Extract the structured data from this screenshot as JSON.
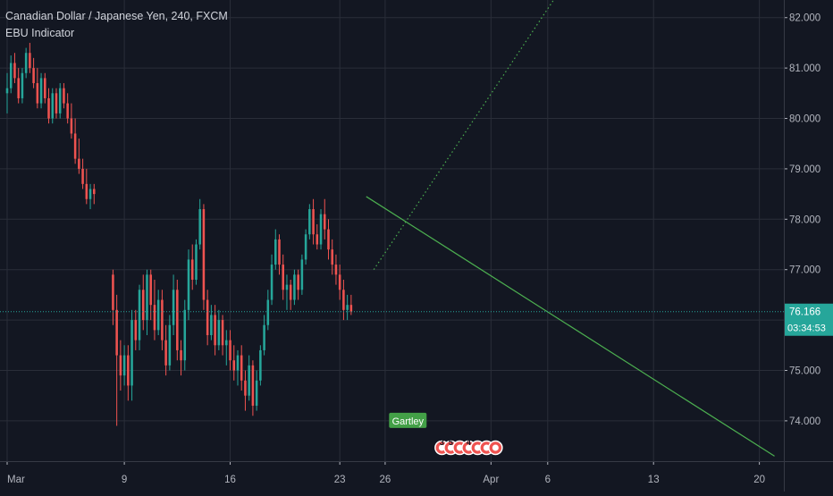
{
  "header": {
    "symbol_line": "Canadian Dollar / Japanese Yen, 240, FXCM",
    "indicator": "EBU Indicator"
  },
  "colors": {
    "background": "#131722",
    "grid": "#2a2e39",
    "up": "#26a69a",
    "down": "#ef5350",
    "price_line": "#26a69a",
    "trendline": "#4caf50",
    "axis_text": "#b2b5be",
    "label_badge": "#43a047"
  },
  "chart_data": {
    "type": "candlestick",
    "y_axis": {
      "ticks": [
        "82.000",
        "81.000",
        "80.000",
        "79.000",
        "78.000",
        "77.000",
        "76.000",
        "75.000",
        "74.000"
      ],
      "tick_values": [
        82,
        81,
        80,
        79,
        78,
        77,
        76,
        75,
        74
      ],
      "range": [
        73.2,
        82.35
      ]
    },
    "x_axis": {
      "ticks": [
        "Mar",
        "9",
        "16",
        "23",
        "26",
        "Apr",
        "6",
        "13",
        "20"
      ],
      "tick_positions": [
        0,
        31,
        59,
        88,
        100,
        128,
        143,
        171,
        199
      ],
      "range": [
        0,
        205
      ]
    },
    "current_price": {
      "value": 76.166,
      "label": "76.166",
      "countdown": "03:34:53"
    },
    "candles": [
      [
        0,
        80.5,
        80.9,
        80.1,
        80.6
      ],
      [
        1,
        80.6,
        81.25,
        80.5,
        81.1
      ],
      [
        2,
        81.1,
        81.3,
        80.7,
        80.8
      ],
      [
        3,
        80.8,
        81.0,
        80.3,
        80.4
      ],
      [
        4,
        80.4,
        81.0,
        80.3,
        80.9
      ],
      [
        5,
        80.9,
        81.4,
        80.8,
        81.3
      ],
      [
        6,
        81.3,
        81.5,
        80.9,
        81.0
      ],
      [
        7,
        81.0,
        81.2,
        80.6,
        80.7
      ],
      [
        8,
        80.7,
        81.0,
        80.2,
        80.3
      ],
      [
        9,
        80.3,
        80.9,
        80.2,
        80.8
      ],
      [
        10,
        80.8,
        80.9,
        80.3,
        80.4
      ],
      [
        11,
        80.4,
        80.6,
        79.9,
        80.0
      ],
      [
        12,
        80.0,
        80.6,
        79.9,
        80.5
      ],
      [
        13,
        80.5,
        80.6,
        80.0,
        80.1
      ],
      [
        14,
        80.1,
        80.7,
        80.0,
        80.6
      ],
      [
        15,
        80.6,
        80.7,
        80.2,
        80.3
      ],
      [
        16,
        80.3,
        80.5,
        79.9,
        80.0
      ],
      [
        17,
        80.0,
        80.3,
        79.6,
        79.7
      ],
      [
        18,
        79.7,
        80.0,
        79.1,
        79.2
      ],
      [
        19,
        79.2,
        79.6,
        78.9,
        79.0
      ],
      [
        20,
        79.0,
        79.2,
        78.6,
        78.7
      ],
      [
        21,
        78.7,
        79.0,
        78.3,
        78.4
      ],
      [
        22,
        78.4,
        78.7,
        78.2,
        78.6
      ],
      [
        23,
        78.6,
        78.7,
        78.3,
        78.5
      ],
      [
        28,
        76.9,
        77.0,
        75.9,
        76.2
      ],
      [
        29,
        76.2,
        76.5,
        73.9,
        75.3
      ],
      [
        30,
        75.3,
        75.6,
        74.6,
        74.9
      ],
      [
        31,
        74.9,
        75.5,
        74.7,
        75.3
      ],
      [
        32,
        75.3,
        75.5,
        74.4,
        74.7
      ],
      [
        33,
        74.7,
        76.2,
        74.4,
        76.0
      ],
      [
        34,
        76.0,
        76.2,
        75.4,
        75.6
      ],
      [
        35,
        75.6,
        76.7,
        75.4,
        76.6
      ],
      [
        36,
        76.6,
        76.9,
        75.8,
        76.0
      ],
      [
        37,
        76.0,
        77.0,
        75.7,
        76.9
      ],
      [
        38,
        76.9,
        77.0,
        76.0,
        76.3
      ],
      [
        39,
        76.3,
        76.8,
        75.6,
        75.8
      ],
      [
        40,
        75.8,
        76.6,
        75.7,
        76.4
      ],
      [
        41,
        76.4,
        76.6,
        75.4,
        75.6
      ],
      [
        42,
        75.6,
        75.9,
        74.9,
        75.1
      ],
      [
        43,
        75.1,
        76.1,
        75.0,
        75.9
      ],
      [
        44,
        75.9,
        76.9,
        75.7,
        76.6
      ],
      [
        45,
        76.6,
        76.8,
        75.2,
        75.4
      ],
      [
        46,
        75.4,
        75.6,
        74.9,
        75.2
      ],
      [
        47,
        75.2,
        76.4,
        75.0,
        76.2
      ],
      [
        48,
        76.2,
        77.4,
        76.0,
        77.2
      ],
      [
        49,
        77.2,
        77.5,
        76.6,
        76.8
      ],
      [
        50,
        76.8,
        77.6,
        76.7,
        77.5
      ],
      [
        51,
        77.5,
        78.4,
        77.4,
        78.2
      ],
      [
        52,
        78.2,
        78.3,
        76.2,
        76.4
      ],
      [
        53,
        76.4,
        76.6,
        75.5,
        75.7
      ],
      [
        54,
        75.7,
        76.3,
        75.6,
        76.1
      ],
      [
        55,
        76.1,
        76.3,
        75.3,
        75.5
      ],
      [
        56,
        75.5,
        76.2,
        75.4,
        76.0
      ],
      [
        57,
        76.0,
        76.1,
        75.3,
        75.5
      ],
      [
        58,
        75.5,
        75.8,
        75.1,
        75.6
      ],
      [
        59,
        75.6,
        75.8,
        75.0,
        75.2
      ],
      [
        60,
        75.2,
        75.5,
        74.8,
        75.0
      ],
      [
        61,
        75.0,
        75.4,
        74.7,
        75.3
      ],
      [
        62,
        75.3,
        75.5,
        74.6,
        74.8
      ],
      [
        63,
        74.8,
        75.0,
        74.2,
        74.5
      ],
      [
        64,
        74.5,
        75.3,
        74.4,
        75.1
      ],
      [
        65,
        75.1,
        75.2,
        74.1,
        74.3
      ],
      [
        66,
        74.3,
        75.0,
        74.2,
        74.8
      ],
      [
        67,
        74.8,
        75.5,
        74.7,
        75.4
      ],
      [
        68,
        75.4,
        76.1,
        75.3,
        75.9
      ],
      [
        69,
        75.9,
        76.6,
        75.8,
        76.4
      ],
      [
        70,
        76.4,
        77.3,
        76.3,
        77.1
      ],
      [
        71,
        77.1,
        77.8,
        77.0,
        77.6
      ],
      [
        72,
        77.6,
        77.7,
        76.9,
        77.1
      ],
      [
        73,
        77.1,
        77.3,
        76.4,
        76.6
      ],
      [
        74,
        76.6,
        76.9,
        76.2,
        76.7
      ],
      [
        75,
        76.7,
        76.8,
        76.2,
        76.4
      ],
      [
        76,
        76.4,
        77.0,
        76.3,
        76.9
      ],
      [
        77,
        76.9,
        77.0,
        76.4,
        76.6
      ],
      [
        78,
        76.6,
        77.3,
        76.5,
        77.2
      ],
      [
        79,
        77.2,
        77.8,
        77.1,
        77.7
      ],
      [
        80,
        77.7,
        78.3,
        77.6,
        78.2
      ],
      [
        81,
        78.2,
        78.4,
        77.5,
        77.7
      ],
      [
        82,
        77.7,
        77.9,
        77.4,
        77.5
      ],
      [
        83,
        77.5,
        78.2,
        77.4,
        78.1
      ],
      [
        84,
        78.1,
        78.4,
        77.6,
        77.8
      ],
      [
        85,
        77.8,
        78.0,
        77.2,
        77.4
      ],
      [
        86,
        77.4,
        77.6,
        76.9,
        77.1
      ],
      [
        87,
        77.1,
        77.3,
        76.7,
        76.9
      ],
      [
        88,
        76.9,
        77.1,
        76.4,
        76.6
      ],
      [
        89,
        76.6,
        76.8,
        76.0,
        76.2
      ],
      [
        90,
        76.2,
        76.5,
        76.0,
        76.3
      ],
      [
        91,
        76.3,
        76.5,
        76.1,
        76.17
      ]
    ],
    "trendlines": [
      {
        "style": "dotted",
        "from": [
          97,
          77.0
        ],
        "to": [
          145,
          82.4
        ]
      },
      {
        "style": "solid",
        "from": [
          95,
          78.45
        ],
        "to": [
          203,
          73.3
        ]
      }
    ],
    "annotations": [
      {
        "type": "label",
        "text": "Gartley",
        "x": 106,
        "price": 74.0
      }
    ],
    "event_markers": {
      "x_start": 115,
      "count": 7,
      "labels": [
        "3",
        "5",
        "",
        "4",
        "",
        "",
        ""
      ]
    }
  }
}
